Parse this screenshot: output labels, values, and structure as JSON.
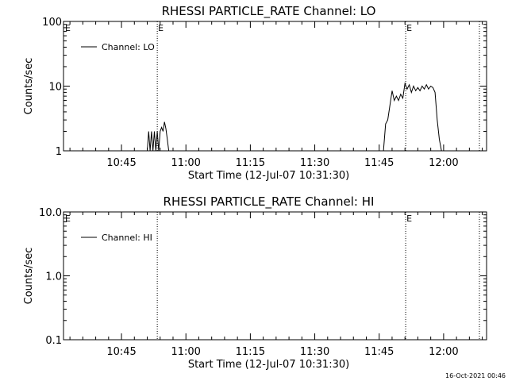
{
  "footer": {
    "timestamp": "16-Oct-2021 00:46"
  },
  "chart_data": [
    {
      "type": "line",
      "title": "RHESSI PARTICLE_RATE Channel: LO",
      "xlabel": "Start Time (12-Jul-07 10:31:30)",
      "ylabel": "Counts/sec",
      "y_scale": "log",
      "xlim": [
        "10:31:30",
        "12:10:00"
      ],
      "ylim": [
        1,
        100
      ],
      "x_tick_labels": [
        "10:45",
        "11:00",
        "11:15",
        "11:30",
        "11:45",
        "12:00"
      ],
      "y_tick_labels": [
        "1",
        "10",
        "100"
      ],
      "y_tick_values": [
        1,
        10,
        100
      ],
      "legend": {
        "position": "top-left",
        "entries": [
          "Channel: LO"
        ]
      },
      "markers": [
        {
          "time": "10:53:20",
          "label": "E"
        },
        {
          "time": "11:51:10",
          "label": "E"
        },
        {
          "time": "12:08:20",
          "label": ""
        }
      ],
      "left_marker_label": "E",
      "grid": false,
      "series": [
        {
          "name": "Channel: LO",
          "x": [
            "10:51:00",
            "10:51:20",
            "10:51:40",
            "10:52:00",
            "10:52:20",
            "10:52:40",
            "10:53:00",
            "10:53:20",
            "10:53:40",
            "10:54:00",
            "10:54:20",
            "10:54:40",
            "10:55:00",
            "10:55:20",
            "10:55:40",
            "10:56:00",
            "10:56:20",
            "10:56:40",
            "10:57:00",
            "10:57:20",
            "10:57:40",
            "10:58:00",
            "10:58:20",
            "11:46:00",
            "11:46:30",
            "11:47:00",
            "11:47:30",
            "11:48:00",
            "11:48:30",
            "11:49:00",
            "11:49:30",
            "11:50:00",
            "11:50:30",
            "11:51:00",
            "11:51:30",
            "11:52:00",
            "11:52:30",
            "11:53:00",
            "11:53:30",
            "11:54:00",
            "11:54:30",
            "11:55:00",
            "11:55:30",
            "11:56:00",
            "11:56:30",
            "11:57:00",
            "11:57:30",
            "11:58:00",
            "11:58:30",
            "11:59:00",
            "11:59:30"
          ],
          "y": [
            1,
            2,
            1,
            2,
            1,
            2,
            1,
            2,
            1,
            2,
            2.3,
            2,
            2.8,
            2.2,
            1.5,
            1,
            null,
            null,
            null,
            null,
            null,
            null,
            null,
            1,
            2.6,
            3,
            5,
            8.5,
            6,
            7,
            6,
            7.5,
            6.5,
            11,
            9,
            10.5,
            8,
            10,
            8.5,
            9.5,
            8.5,
            10,
            9,
            10.5,
            9,
            10,
            9.5,
            8,
            3,
            1.5,
            1
          ]
        }
      ]
    },
    {
      "type": "line",
      "title": "RHESSI PARTICLE_RATE Channel: HI",
      "xlabel": "Start Time (12-Jul-07 10:31:30)",
      "ylabel": "Counts/sec",
      "y_scale": "log",
      "xlim": [
        "10:31:30",
        "12:10:00"
      ],
      "ylim": [
        0.1,
        10
      ],
      "x_tick_labels": [
        "10:45",
        "11:00",
        "11:15",
        "11:30",
        "11:45",
        "12:00"
      ],
      "y_tick_labels": [
        "0.1",
        "1.0",
        "10.0"
      ],
      "y_tick_values": [
        0.1,
        1,
        10
      ],
      "legend": {
        "position": "top-left",
        "entries": [
          "Channel: HI"
        ]
      },
      "markers": [
        {
          "time": "10:53:20",
          "label": ""
        },
        {
          "time": "11:51:10",
          "label": "E"
        },
        {
          "time": "12:08:20",
          "label": ""
        }
      ],
      "left_marker_label": "E",
      "grid": false,
      "series": [
        {
          "name": "Channel: HI",
          "x": [],
          "y": []
        }
      ]
    }
  ]
}
